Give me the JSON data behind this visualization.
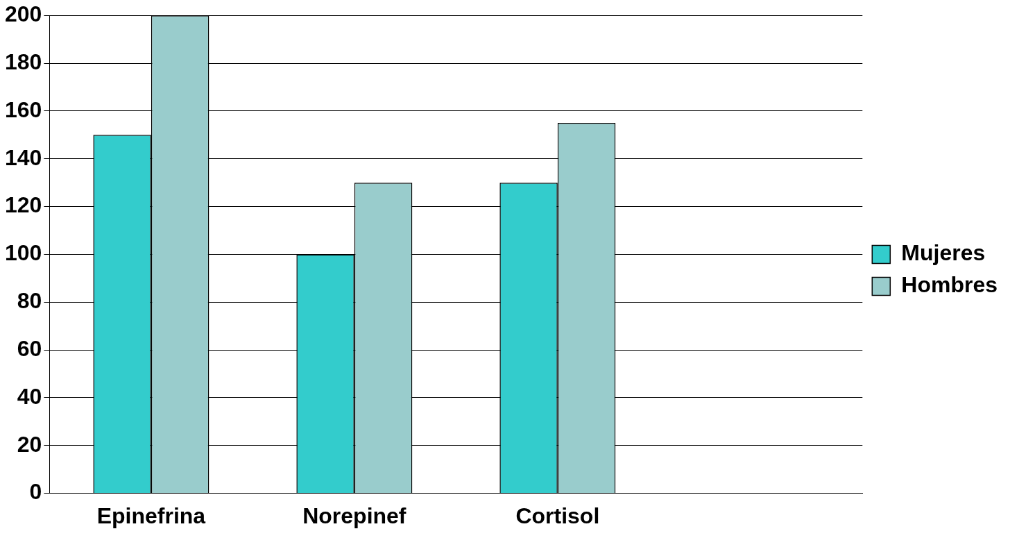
{
  "chart_data": {
    "type": "bar",
    "categories": [
      "Epinefrina",
      "Norepinef",
      "Cortisol",
      null
    ],
    "series": [
      {
        "name": "Mujeres",
        "color": "#33cccc",
        "values": [
          150,
          100,
          130,
          null
        ]
      },
      {
        "name": "Hombres",
        "color": "#99cccc",
        "values": [
          200,
          130,
          155,
          null
        ]
      }
    ],
    "ylim": [
      0,
      200
    ],
    "yticks": [
      0,
      20,
      40,
      60,
      80,
      100,
      120,
      140,
      160,
      180,
      200
    ],
    "grid": "y",
    "legend": "right"
  }
}
